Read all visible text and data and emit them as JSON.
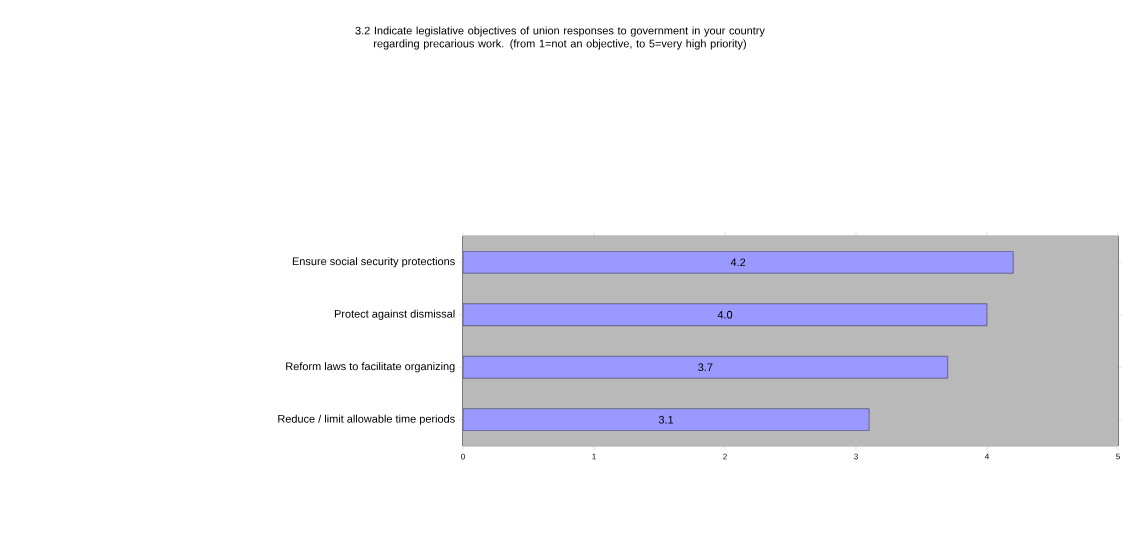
{
  "chart_data": {
    "type": "bar",
    "orientation": "horizontal",
    "title": "3.2 Indicate legislative objectives of union responses to government in your country regarding precarious work. (from  1=not an objective, to 5=very high priority)",
    "categories": [
      "Ensure social security protections",
      "Protect against dismissal",
      "Reform laws to facilitate organizing",
      "Reduce / limit allowable time periods"
    ],
    "values": [
      4.2,
      4.0,
      3.7,
      3.1
    ],
    "value_labels": [
      "4.2",
      "4.0",
      "3.7",
      "3.1"
    ],
    "color": "#9999ff",
    "xlim": [
      0,
      5
    ],
    "xticks": [
      0,
      1,
      2,
      3,
      4,
      5
    ],
    "grid": "x"
  }
}
